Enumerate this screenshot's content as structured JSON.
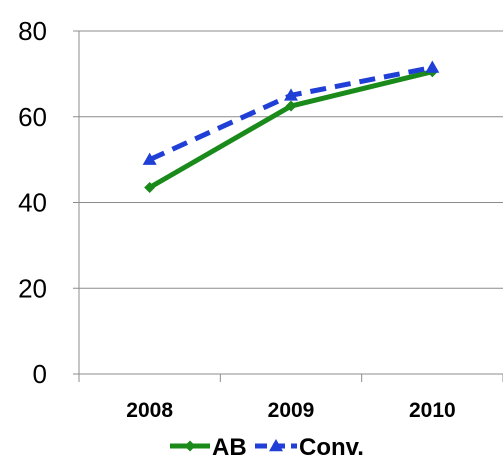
{
  "chart_data": {
    "type": "line",
    "title": "",
    "xlabel": "",
    "ylabel": "",
    "categories": [
      "2008",
      "2009",
      "2010"
    ],
    "ylim": [
      0,
      80
    ],
    "yticks": [
      "0",
      "20",
      "40",
      "60",
      "80"
    ],
    "grid": true,
    "legend_position": "bottom",
    "series": [
      {
        "name": "AB",
        "values": [
          43.5,
          62.5,
          70.5
        ],
        "color": "#1a8a1a",
        "marker": "diamond",
        "line_style": "solid"
      },
      {
        "name": "Conv.",
        "values": [
          50,
          65,
          71.5
        ],
        "color": "#1f3fd6",
        "marker": "triangle",
        "line_style": "dashed"
      }
    ]
  }
}
